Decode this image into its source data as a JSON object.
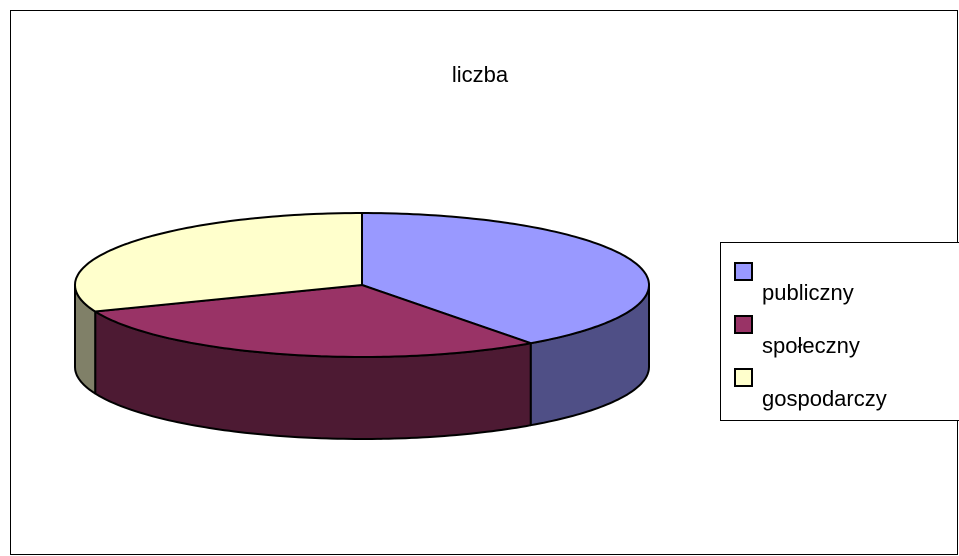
{
  "chart_data": {
    "type": "pie",
    "title": "liczba",
    "categories": [
      "publiczny",
      "społeczny",
      "gospodarczy"
    ],
    "values": [
      40,
      29,
      31
    ],
    "colors": [
      "#9999ff",
      "#993366",
      "#ffffcc"
    ],
    "side_colors": [
      "#4f4f86",
      "#4d1a33",
      "#808068"
    ],
    "legend": "right"
  }
}
